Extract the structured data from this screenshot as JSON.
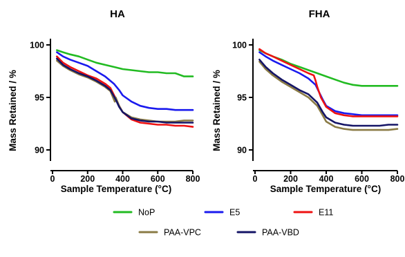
{
  "chart_data": [
    {
      "type": "line",
      "title": "HA",
      "xlabel": "Sample Temperature (°C)",
      "ylabel": "Mass Retained / %",
      "xlim": [
        0,
        800
      ],
      "ylim": [
        89,
        101.5
      ],
      "xticks": [
        0,
        200,
        400,
        600,
        800
      ],
      "yticks": [
        90,
        95,
        100
      ],
      "grid": false,
      "series": [
        {
          "name": "NoP",
          "color": "#22bb22",
          "x": [
            25,
            60,
            100,
            150,
            200,
            250,
            300,
            350,
            400,
            450,
            500,
            550,
            600,
            650,
            700,
            750,
            800
          ],
          "y": [
            99.5,
            99.3,
            99.1,
            98.9,
            98.6,
            98.3,
            98.1,
            97.9,
            97.7,
            97.6,
            97.5,
            97.4,
            97.4,
            97.3,
            97.3,
            97.0,
            97.0
          ]
        },
        {
          "name": "E5",
          "color": "#1a1aee",
          "x": [
            25,
            60,
            100,
            150,
            200,
            250,
            300,
            350,
            380,
            400,
            450,
            500,
            550,
            600,
            650,
            700,
            750,
            800
          ],
          "y": [
            99.3,
            98.9,
            98.6,
            98.3,
            98.0,
            97.5,
            97.0,
            96.3,
            95.7,
            95.2,
            94.6,
            94.2,
            94.0,
            93.9,
            93.9,
            93.8,
            93.8,
            93.8
          ]
        },
        {
          "name": "E11",
          "color": "#ee1111",
          "x": [
            25,
            60,
            100,
            150,
            200,
            250,
            300,
            330,
            360,
            380,
            400,
            450,
            500,
            550,
            600,
            650,
            700,
            750,
            800
          ],
          "y": [
            98.9,
            98.3,
            97.9,
            97.5,
            97.1,
            96.8,
            96.3,
            95.9,
            94.9,
            94.2,
            93.6,
            92.9,
            92.6,
            92.5,
            92.4,
            92.4,
            92.3,
            92.3,
            92.2
          ]
        },
        {
          "name": "PAA-VPC",
          "color": "#8a7b45",
          "x": [
            25,
            60,
            100,
            150,
            200,
            250,
            300,
            330,
            355,
            360,
            380,
            400,
            450,
            500,
            550,
            600,
            650,
            700,
            750,
            800
          ],
          "y": [
            98.5,
            98.0,
            97.6,
            97.2,
            96.9,
            96.5,
            96.0,
            95.6,
            94.6,
            95.0,
            94.2,
            93.6,
            93.1,
            92.9,
            92.8,
            92.7,
            92.7,
            92.7,
            92.8,
            92.8
          ]
        },
        {
          "name": "PAA-VBD",
          "color": "#141466",
          "x": [
            25,
            60,
            100,
            150,
            200,
            250,
            300,
            330,
            360,
            380,
            400,
            450,
            500,
            550,
            600,
            650,
            700,
            750,
            800
          ],
          "y": [
            98.7,
            98.1,
            97.7,
            97.3,
            97.0,
            96.6,
            96.1,
            95.7,
            94.8,
            94.1,
            93.6,
            93.0,
            92.8,
            92.7,
            92.7,
            92.6,
            92.6,
            92.6,
            92.6
          ]
        }
      ]
    },
    {
      "type": "line",
      "title": "FHA",
      "xlabel": "Sample Temperature (°C)",
      "ylabel": "Mass Retained / %",
      "xlim": [
        0,
        800
      ],
      "ylim": [
        89,
        101.5
      ],
      "xticks": [
        0,
        200,
        400,
        600,
        800
      ],
      "yticks": [
        90,
        95,
        100
      ],
      "grid": false,
      "series": [
        {
          "name": "NoP",
          "color": "#22bb22",
          "x": [
            25,
            60,
            100,
            150,
            200,
            250,
            300,
            350,
            400,
            450,
            500,
            550,
            600,
            650,
            700,
            750,
            800
          ],
          "y": [
            99.5,
            99.2,
            98.9,
            98.6,
            98.2,
            97.9,
            97.6,
            97.3,
            97.0,
            96.7,
            96.4,
            96.2,
            96.1,
            96.1,
            96.1,
            96.1,
            96.1
          ]
        },
        {
          "name": "E5",
          "color": "#1a1aee",
          "x": [
            25,
            60,
            100,
            150,
            200,
            250,
            300,
            340,
            360,
            380,
            400,
            450,
            500,
            550,
            600,
            650,
            700,
            750,
            800
          ],
          "y": [
            99.3,
            98.9,
            98.5,
            98.1,
            97.7,
            97.3,
            96.8,
            96.2,
            95.5,
            94.8,
            94.2,
            93.7,
            93.5,
            93.4,
            93.3,
            93.3,
            93.3,
            93.3,
            93.3
          ]
        },
        {
          "name": "E11",
          "color": "#ee1111",
          "x": [
            25,
            60,
            100,
            150,
            200,
            250,
            300,
            330,
            340,
            350,
            370,
            400,
            450,
            500,
            550,
            600,
            650,
            700,
            750,
            800
          ],
          "y": [
            99.6,
            99.2,
            98.9,
            98.5,
            98.1,
            97.7,
            97.3,
            97.1,
            96.6,
            96.0,
            95.0,
            94.1,
            93.5,
            93.3,
            93.2,
            93.2,
            93.2,
            93.2,
            93.2,
            93.2
          ]
        },
        {
          "name": "PAA-VPC",
          "color": "#8a7b45",
          "x": [
            25,
            60,
            100,
            150,
            200,
            250,
            300,
            350,
            380,
            400,
            450,
            500,
            550,
            600,
            650,
            700,
            750,
            800
          ],
          "y": [
            98.4,
            97.7,
            97.1,
            96.5,
            96.0,
            95.5,
            95.0,
            94.2,
            93.3,
            92.7,
            92.2,
            92.0,
            91.9,
            91.9,
            91.9,
            91.9,
            91.9,
            92.0
          ]
        },
        {
          "name": "PAA-VBD",
          "color": "#141466",
          "x": [
            25,
            60,
            100,
            150,
            200,
            250,
            300,
            350,
            380,
            400,
            450,
            500,
            550,
            600,
            650,
            700,
            750,
            800
          ],
          "y": [
            98.6,
            97.9,
            97.3,
            96.7,
            96.2,
            95.7,
            95.3,
            94.5,
            93.6,
            93.1,
            92.6,
            92.4,
            92.3,
            92.3,
            92.3,
            92.3,
            92.4,
            92.4
          ]
        }
      ]
    }
  ],
  "legend": {
    "placement": "bottom",
    "items": [
      {
        "label": "NoP",
        "color": "#22bb22"
      },
      {
        "label": "E5",
        "color": "#1a1aee"
      },
      {
        "label": "E11",
        "color": "#ee1111"
      },
      {
        "label": "PAA-VPC",
        "color": "#8a7b45"
      },
      {
        "label": "PAA-VBD",
        "color": "#141466"
      }
    ]
  }
}
